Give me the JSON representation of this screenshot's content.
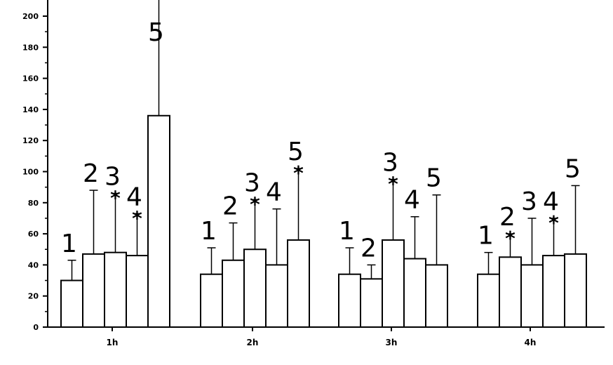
{
  "chart_data": {
    "type": "bar",
    "title": "",
    "xlabel": "",
    "ylabel": "",
    "ylim": [
      0,
      210
    ],
    "yticks": [
      0,
      20,
      40,
      60,
      80,
      100,
      120,
      140,
      160,
      180,
      200
    ],
    "categories": [
      "1h",
      "2h",
      "3h",
      "4h"
    ],
    "bar_labels": [
      "1",
      "2",
      "3",
      "4",
      "5"
    ],
    "significance_marker": "*",
    "groups": [
      {
        "category": "1h",
        "bars": [
          {
            "label": "1",
            "value": 30,
            "error": 43,
            "star": false
          },
          {
            "label": "2",
            "value": 47,
            "error": 88,
            "star": false
          },
          {
            "label": "3",
            "value": 48,
            "error": 86,
            "star": true
          },
          {
            "label": "4",
            "value": 46,
            "error": 73,
            "star": true
          },
          {
            "label": "5",
            "value": 136,
            "error": 218,
            "star": false
          }
        ]
      },
      {
        "category": "2h",
        "bars": [
          {
            "label": "1",
            "value": 34,
            "error": 51,
            "star": false
          },
          {
            "label": "2",
            "value": 43,
            "error": 67,
            "star": false
          },
          {
            "label": "3",
            "value": 50,
            "error": 82,
            "star": true
          },
          {
            "label": "4",
            "value": 40,
            "error": 76,
            "star": false
          },
          {
            "label": "5",
            "value": 56,
            "error": 102,
            "star": true
          }
        ]
      },
      {
        "category": "3h",
        "bars": [
          {
            "label": "1",
            "value": 34,
            "error": 51,
            "star": false
          },
          {
            "label": "2",
            "value": 31,
            "error": 40,
            "star": false
          },
          {
            "label": "3",
            "value": 56,
            "error": 95,
            "star": true
          },
          {
            "label": "4",
            "value": 44,
            "error": 71,
            "star": false
          },
          {
            "label": "5",
            "value": 40,
            "error": 85,
            "star": false
          }
        ]
      },
      {
        "category": "4h",
        "bars": [
          {
            "label": "1",
            "value": 34,
            "error": 48,
            "star": false
          },
          {
            "label": "2",
            "value": 45,
            "error": 60,
            "star": true
          },
          {
            "label": "3",
            "value": 40,
            "error": 70,
            "star": false
          },
          {
            "label": "4",
            "value": 46,
            "error": 70,
            "star": true
          },
          {
            "label": "5",
            "value": 47,
            "error": 91,
            "star": false
          }
        ]
      }
    ]
  }
}
